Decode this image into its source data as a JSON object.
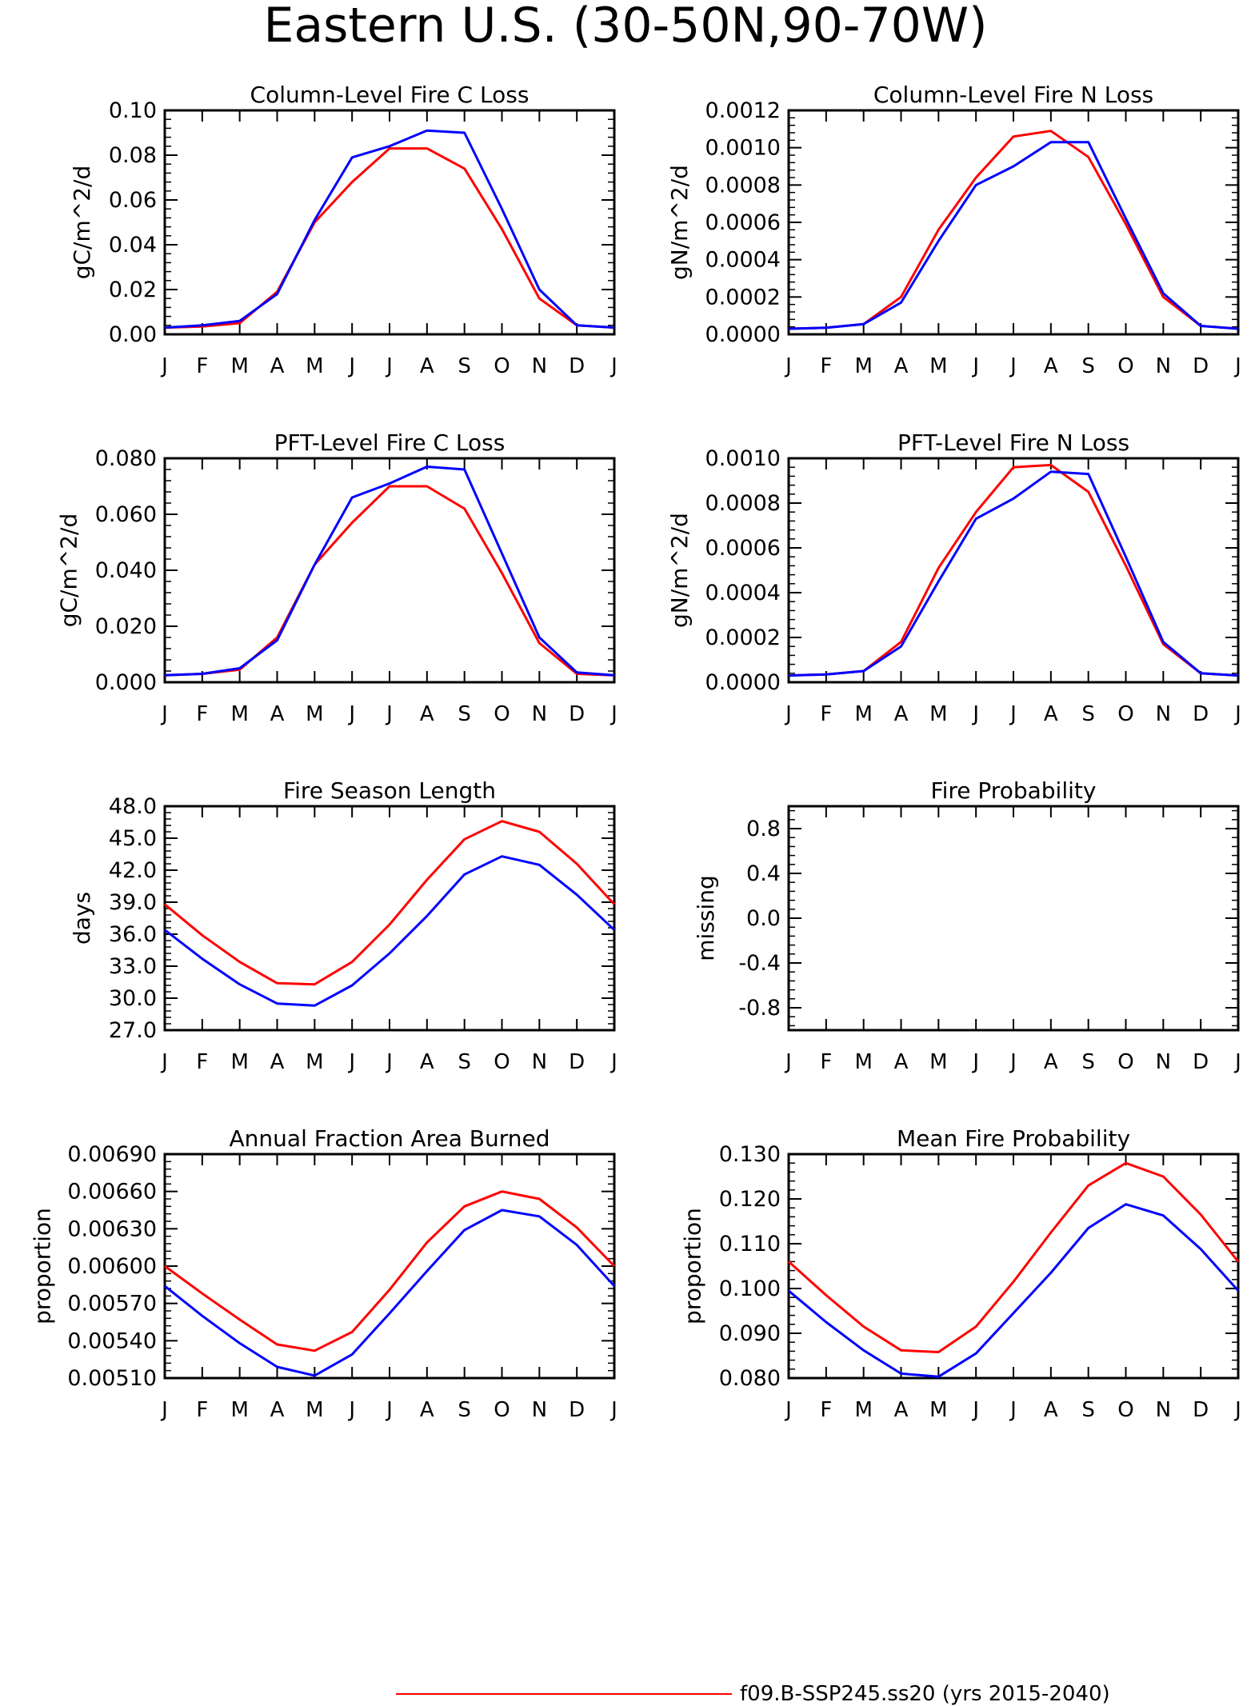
{
  "figure": {
    "title": "Eastern U.S. (30-50N,90-70W)",
    "legend": {
      "label": "f09.B-SSP245.ss20 (yrs 2015-2040)",
      "color": "#ff0000"
    }
  },
  "colors": {
    "series_red": "#ff0000",
    "series_blue": "#0000ff",
    "axis": "#000000"
  },
  "chart_data": [
    {
      "type": "line",
      "title": "Column-Level Fire C Loss",
      "ylabel": "gC/m^2/d",
      "categories": [
        "J",
        "F",
        "M",
        "A",
        "M",
        "J",
        "J",
        "A",
        "S",
        "O",
        "N",
        "D",
        "J"
      ],
      "ylim": [
        0,
        0.1
      ],
      "yticks": [
        "0.00",
        "0.02",
        "0.04",
        "0.06",
        "0.08",
        "0.10"
      ],
      "ytick_values": [
        0,
        0.02,
        0.04,
        0.06,
        0.08,
        0.1
      ],
      "series": [
        {
          "values": [
            0.003,
            0.0035,
            0.005,
            0.019,
            0.05,
            0.068,
            0.083,
            0.083,
            0.074,
            0.047,
            0.016,
            0.004,
            0.003
          ]
        },
        {
          "values": [
            0.003,
            0.004,
            0.006,
            0.018,
            0.051,
            0.079,
            0.084,
            0.091,
            0.09,
            0.056,
            0.02,
            0.004,
            0.003
          ]
        }
      ]
    },
    {
      "type": "line",
      "title": "Column-Level Fire N Loss",
      "ylabel": "gN/m^2/d",
      "categories": [
        "J",
        "F",
        "M",
        "A",
        "M",
        "J",
        "J",
        "A",
        "S",
        "O",
        "N",
        "D",
        "J"
      ],
      "ylim": [
        0,
        0.0012
      ],
      "yticks": [
        "0.0000",
        "0.0002",
        "0.0004",
        "0.0006",
        "0.0008",
        "0.0010",
        "0.0012"
      ],
      "ytick_values": [
        0,
        0.0002,
        0.0004,
        0.0006,
        0.0008,
        0.001,
        0.0012
      ],
      "series": [
        {
          "values": [
            3e-05,
            3.5e-05,
            5.5e-05,
            0.0002,
            0.00056,
            0.00084,
            0.00106,
            0.00109,
            0.00095,
            0.00059,
            0.0002,
            4.5e-05,
            3e-05
          ]
        },
        {
          "values": [
            3e-05,
            3.5e-05,
            5.5e-05,
            0.00017,
            0.0005,
            0.0008,
            0.0009,
            0.00103,
            0.00103,
            0.00062,
            0.00022,
            4.5e-05,
            3e-05
          ]
        }
      ]
    },
    {
      "type": "line",
      "title": "PFT-Level Fire C Loss",
      "ylabel": "gC/m^2/d",
      "categories": [
        "J",
        "F",
        "M",
        "A",
        "M",
        "J",
        "J",
        "A",
        "S",
        "O",
        "N",
        "D",
        "J"
      ],
      "ylim": [
        0,
        0.08
      ],
      "yticks": [
        "0.000",
        "0.020",
        "0.040",
        "0.060",
        "0.080"
      ],
      "ytick_values": [
        0,
        0.02,
        0.04,
        0.06,
        0.08
      ],
      "series": [
        {
          "values": [
            0.0025,
            0.003,
            0.0045,
            0.016,
            0.042,
            0.057,
            0.07,
            0.07,
            0.062,
            0.039,
            0.014,
            0.003,
            0.0025
          ]
        },
        {
          "values": [
            0.0025,
            0.003,
            0.005,
            0.015,
            0.042,
            0.066,
            0.071,
            0.077,
            0.076,
            0.046,
            0.016,
            0.0035,
            0.0025
          ]
        }
      ]
    },
    {
      "type": "line",
      "title": "PFT-Level Fire N Loss",
      "ylabel": "gN/m^2/d",
      "categories": [
        "J",
        "F",
        "M",
        "A",
        "M",
        "J",
        "J",
        "A",
        "S",
        "O",
        "N",
        "D",
        "J"
      ],
      "ylim": [
        0,
        0.001
      ],
      "yticks": [
        "0.0000",
        "0.0002",
        "0.0004",
        "0.0006",
        "0.0008",
        "0.0010"
      ],
      "ytick_values": [
        0,
        0.0002,
        0.0004,
        0.0006,
        0.0008,
        0.001
      ],
      "series": [
        {
          "values": [
            3e-05,
            3.5e-05,
            5e-05,
            0.00018,
            0.00051,
            0.00076,
            0.00096,
            0.00097,
            0.00085,
            0.00052,
            0.00017,
            4e-05,
            3e-05
          ]
        },
        {
          "values": [
            3e-05,
            3.5e-05,
            5e-05,
            0.00016,
            0.00045,
            0.00073,
            0.00082,
            0.00094,
            0.00093,
            0.00056,
            0.00018,
            4e-05,
            3e-05
          ]
        }
      ]
    },
    {
      "type": "line",
      "title": "Fire Season Length",
      "ylabel": "days",
      "categories": [
        "J",
        "F",
        "M",
        "A",
        "M",
        "J",
        "J",
        "A",
        "S",
        "O",
        "N",
        "D",
        "J"
      ],
      "ylim": [
        27,
        48
      ],
      "yticks": [
        "27.0",
        "30.0",
        "33.0",
        "36.0",
        "39.0",
        "42.0",
        "45.0",
        "48.0"
      ],
      "ytick_values": [
        27,
        30,
        33,
        36,
        39,
        42,
        45,
        48
      ],
      "series": [
        {
          "values": [
            38.8,
            35.9,
            33.4,
            31.4,
            31.3,
            33.4,
            36.9,
            41.1,
            44.9,
            46.6,
            45.6,
            42.6,
            38.8
          ]
        },
        {
          "values": [
            36.4,
            33.7,
            31.3,
            29.5,
            29.3,
            31.2,
            34.2,
            37.7,
            41.6,
            43.3,
            42.5,
            39.7,
            36.4
          ]
        }
      ]
    },
    {
      "type": "line",
      "title": "Fire Probability",
      "ylabel": "missing",
      "categories": [
        "J",
        "F",
        "M",
        "A",
        "M",
        "J",
        "J",
        "A",
        "S",
        "O",
        "N",
        "D",
        "J"
      ],
      "ylim": [
        -1,
        1
      ],
      "yticks": [
        "-0.8",
        "-0.4",
        "0.0",
        "0.4",
        "0.8"
      ],
      "ytick_values": [
        -0.8,
        -0.4,
        0,
        0.4,
        0.8
      ],
      "series": []
    },
    {
      "type": "line",
      "title": "Annual Fraction Area Burned",
      "ylabel": "proportion",
      "categories": [
        "J",
        "F",
        "M",
        "A",
        "M",
        "J",
        "J",
        "A",
        "S",
        "O",
        "N",
        "D",
        "J"
      ],
      "ylim": [
        0.0051,
        0.0069
      ],
      "yticks": [
        "0.00510",
        "0.00540",
        "0.00570",
        "0.00600",
        "0.00630",
        "0.00660",
        "0.00690"
      ],
      "ytick_values": [
        0.0051,
        0.0054,
        0.0057,
        0.006,
        0.0063,
        0.0066,
        0.0069
      ],
      "series": [
        {
          "values": [
            0.006,
            0.00578,
            0.00557,
            0.00537,
            0.00532,
            0.00547,
            0.00581,
            0.00619,
            0.00648,
            0.0066,
            0.00654,
            0.00631,
            0.006
          ]
        },
        {
          "values": [
            0.00584,
            0.0056,
            0.00538,
            0.00519,
            0.00512,
            0.00529,
            0.00562,
            0.00596,
            0.00629,
            0.00645,
            0.0064,
            0.00617,
            0.00584
          ]
        }
      ]
    },
    {
      "type": "line",
      "title": "Mean Fire Probability",
      "ylabel": "proportion",
      "categories": [
        "J",
        "F",
        "M",
        "A",
        "M",
        "J",
        "J",
        "A",
        "S",
        "O",
        "N",
        "D",
        "J"
      ],
      "ylim": [
        0.08,
        0.13
      ],
      "yticks": [
        "0.080",
        "0.090",
        "0.100",
        "0.110",
        "0.120",
        "0.130"
      ],
      "ytick_values": [
        0.08,
        0.09,
        0.1,
        0.11,
        0.12,
        0.13
      ],
      "series": [
        {
          "values": [
            0.106,
            0.0985,
            0.0915,
            0.0862,
            0.0858,
            0.0915,
            0.1015,
            0.1125,
            0.123,
            0.128,
            0.125,
            0.1165,
            0.106
          ]
        },
        {
          "values": [
            0.0995,
            0.0925,
            0.0862,
            0.081,
            0.0803,
            0.0855,
            0.0945,
            0.1035,
            0.1135,
            0.1188,
            0.1163,
            0.1088,
            0.0995
          ]
        }
      ]
    }
  ]
}
